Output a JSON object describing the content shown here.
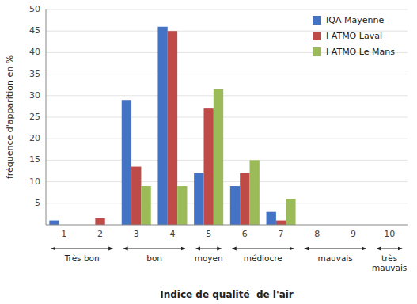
{
  "chart_data": {
    "type": "bar",
    "x_label": "Indice de qualité  de l'air",
    "y_label": "fréquence d'apparition en %",
    "categories": [
      "1",
      "2",
      "3",
      "4",
      "5",
      "6",
      "7",
      "8",
      "9",
      "10"
    ],
    "series": [
      {
        "name": "IQA Mayenne",
        "color": "#4472C4",
        "values": [
          1,
          0,
          29,
          46,
          12,
          9,
          3,
          0,
          0,
          0
        ]
      },
      {
        "name": "I ATMO Laval",
        "color": "#BE4B48",
        "values": [
          0,
          1.5,
          13.5,
          45,
          27,
          12,
          1,
          0,
          0,
          0
        ]
      },
      {
        "name": "I ATMO Le Mans",
        "color": "#9BBB59",
        "values": [
          0,
          0,
          9,
          9,
          31.5,
          15,
          6,
          0,
          0,
          0
        ]
      }
    ],
    "ylim": [
      0,
      50
    ],
    "yticks": [
      5,
      10,
      15,
      20,
      25,
      30,
      35,
      40,
      45,
      50
    ],
    "grid": true,
    "legend": "upper right",
    "annotations": [
      {
        "text": "Très bon",
        "categories": [
          "1",
          "2"
        ]
      },
      {
        "text": "bon",
        "categories": [
          "3",
          "4"
        ]
      },
      {
        "text": "moyen",
        "categories": [
          "5",
          "5"
        ]
      },
      {
        "text": "médiocre",
        "categories": [
          "6",
          "7"
        ]
      },
      {
        "text": "mauvais",
        "categories": [
          "8",
          "9"
        ]
      },
      {
        "text": "très\nmauvais",
        "categories": [
          "10",
          "10"
        ]
      }
    ]
  }
}
